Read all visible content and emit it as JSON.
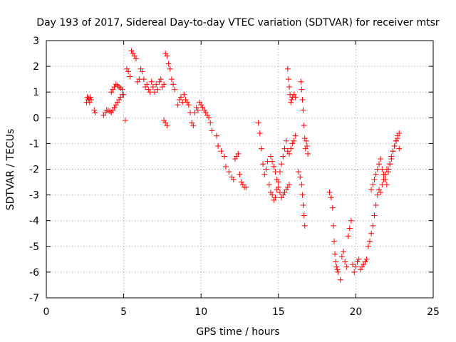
{
  "chart_data": {
    "type": "scatter",
    "title": "Day 193 of 2017, Sidereal Day-to-day VTEC variation (SDTVAR) for receiver mtsr",
    "xlabel": "GPS time / hours",
    "ylabel": "SDTVAR / TECUs",
    "xlim": [
      0,
      25
    ],
    "ylim": [
      -7,
      3
    ],
    "xticks": [
      0,
      5,
      10,
      15,
      20,
      25
    ],
    "yticks": [
      3,
      2,
      1,
      0,
      -1,
      -2,
      -3,
      -4,
      -5,
      -6,
      -7
    ],
    "grid": true,
    "marker": "plus",
    "color": "#ff0000",
    "series": [
      {
        "name": "mtsr",
        "x": [
          2.6,
          2.65,
          2.7,
          2.75,
          2.8,
          2.85,
          2.9,
          3.1,
          3.15,
          3.7,
          3.8,
          3.9,
          4.0,
          4.1,
          4.2,
          4.3,
          4.4,
          4.5,
          4.6,
          4.7,
          4.8,
          4.9,
          4.2,
          4.3,
          4.4,
          4.5,
          4.6,
          4.7,
          4.8,
          4.9,
          5.0,
          5.1,
          5.2,
          5.3,
          5.4,
          5.5,
          5.6,
          5.7,
          5.8,
          5.9,
          6.0,
          6.1,
          6.2,
          6.3,
          6.4,
          6.5,
          6.6,
          6.7,
          6.8,
          6.9,
          7.0,
          7.1,
          7.2,
          7.3,
          7.4,
          7.5,
          7.6,
          7.7,
          7.8,
          7.9,
          8.0,
          8.1,
          8.2,
          8.3,
          7.6,
          7.7,
          7.8,
          8.5,
          8.6,
          8.7,
          8.8,
          8.9,
          9.0,
          9.1,
          9.2,
          9.3,
          9.4,
          9.5,
          9.6,
          9.7,
          9.8,
          9.9,
          10.0,
          10.1,
          10.2,
          10.3,
          10.4,
          10.5,
          10.6,
          10.7,
          11.0,
          11.1,
          11.3,
          11.5,
          11.6,
          11.8,
          12.0,
          12.1,
          12.2,
          12.3,
          12.4,
          12.5,
          12.6,
          12.7,
          12.8,
          12.9,
          13.7,
          13.8,
          13.9,
          14.0,
          14.1,
          14.2,
          14.3,
          14.4,
          14.5,
          14.6,
          14.7,
          14.8,
          14.9,
          15.0,
          15.1,
          15.2,
          15.3,
          15.4,
          15.5,
          15.6,
          15.7,
          15.8,
          15.9,
          16.0,
          16.1,
          14.5,
          14.6,
          14.7,
          14.8,
          14.9,
          15.0,
          15.1,
          15.2,
          15.3,
          15.4,
          15.5,
          15.6,
          15.7,
          15.6,
          15.65,
          15.7,
          15.75,
          15.8,
          15.85,
          15.9,
          16.0,
          16.1,
          16.3,
          16.4,
          16.5,
          16.55,
          16.6,
          16.65,
          16.7,
          16.75,
          16.8,
          16.85,
          16.9,
          16.45,
          16.5,
          16.55,
          16.6,
          16.65,
          16.7,
          18.3,
          18.4,
          18.5,
          18.55,
          18.6,
          18.65,
          18.7,
          18.75,
          18.8,
          18.85,
          19.0,
          19.1,
          19.2,
          19.3,
          19.4,
          19.5,
          19.6,
          19.7,
          19.8,
          19.9,
          20.0,
          20.1,
          20.2,
          20.3,
          20.4,
          20.5,
          20.6,
          20.7,
          20.8,
          20.9,
          21.0,
          21.1,
          21.2,
          21.3,
          21.4,
          21.5,
          21.6,
          21.7,
          21.8,
          21.9,
          22.0,
          22.1,
          22.2,
          22.3,
          22.4,
          22.5,
          22.6,
          22.7,
          22.8,
          21.0,
          21.1,
          21.2,
          21.3,
          21.4,
          21.5,
          21.6,
          21.7,
          21.8,
          21.9,
          22.0,
          22.1,
          22.2,
          22.3,
          22.4,
          22.5,
          22.6,
          22.7,
          22.8
        ],
        "y": [
          0.6,
          0.8,
          0.7,
          0.75,
          0.6,
          0.8,
          0.7,
          0.3,
          0.2,
          0.1,
          0.2,
          0.3,
          0.3,
          0.25,
          0.2,
          0.3,
          0.4,
          0.5,
          0.6,
          0.7,
          0.8,
          0.9,
          1.0,
          1.1,
          1.2,
          1.3,
          1.25,
          1.2,
          1.15,
          1.1,
          0.9,
          -0.1,
          1.9,
          1.8,
          1.6,
          2.6,
          2.5,
          2.4,
          2.3,
          1.4,
          1.5,
          1.9,
          1.8,
          1.5,
          1.2,
          1.3,
          1.1,
          1.0,
          1.4,
          1.2,
          1.0,
          1.3,
          1.1,
          1.4,
          1.5,
          1.2,
          1.3,
          2.5,
          2.4,
          2.1,
          1.9,
          1.5,
          1.3,
          1.1,
          -0.1,
          -0.2,
          -0.3,
          0.5,
          0.7,
          0.8,
          0.6,
          0.9,
          0.7,
          0.6,
          0.5,
          0.2,
          -0.2,
          -0.3,
          0.2,
          0.4,
          0.3,
          0.6,
          0.5,
          0.4,
          0.3,
          0.2,
          0.1,
          0.0,
          -0.2,
          -0.5,
          -0.7,
          -1.1,
          -1.3,
          -1.5,
          -1.9,
          -2.1,
          -2.3,
          -2.4,
          -1.6,
          -1.5,
          -1.4,
          -2.2,
          -2.5,
          -2.6,
          -2.7,
          -2.7,
          -0.2,
          -0.6,
          -1.2,
          -1.8,
          -2.2,
          -2.0,
          -1.7,
          -2.6,
          -2.9,
          -3.0,
          -3.2,
          -3.1,
          -2.8,
          -2.5,
          -2.1,
          -1.8,
          -1.5,
          -1.2,
          -0.9,
          -1.3,
          -1.4,
          -1.2,
          -1.0,
          -0.9,
          -0.7,
          -1.5,
          -1.7,
          -1.9,
          -2.1,
          -2.4,
          -2.7,
          -2.9,
          -3.1,
          -3.0,
          -2.9,
          -2.8,
          -2.7,
          -2.6,
          1.9,
          1.5,
          1.2,
          0.9,
          0.6,
          0.7,
          0.8,
          0.9,
          0.8,
          -2.1,
          -2.3,
          -2.6,
          -3.0,
          -3.4,
          -3.8,
          -4.2,
          -1.2,
          -0.9,
          -1.1,
          -1.4,
          1.4,
          1.1,
          0.7,
          0.3,
          -0.3,
          -0.8,
          -2.9,
          -3.1,
          -3.5,
          -4.2,
          -4.8,
          -5.3,
          -5.6,
          -5.8,
          -5.9,
          -6.0,
          -6.3,
          -5.4,
          -5.2,
          -5.6,
          -5.8,
          -4.6,
          -4.3,
          -4.0,
          -5.7,
          -6.0,
          -5.8,
          -5.6,
          -5.5,
          -5.9,
          -5.8,
          -5.7,
          -5.6,
          -5.5,
          -5.0,
          -4.8,
          -4.5,
          -4.2,
          -3.8,
          -3.4,
          -3.0,
          -2.8,
          -2.9,
          -2.6,
          -2.4,
          -2.2,
          -2.0,
          -2.1,
          -1.8,
          -1.6,
          -1.3,
          -1.1,
          -0.9,
          -0.8,
          -0.6,
          -2.8,
          -2.6,
          -2.4,
          -2.2,
          -2.0,
          -1.8,
          -1.6,
          -2.0,
          -2.2,
          -2.4,
          -2.6,
          -2.0,
          -1.8,
          -1.5,
          -1.3,
          -1.1,
          -0.9,
          -0.7,
          -1.2
        ]
      }
    ]
  }
}
